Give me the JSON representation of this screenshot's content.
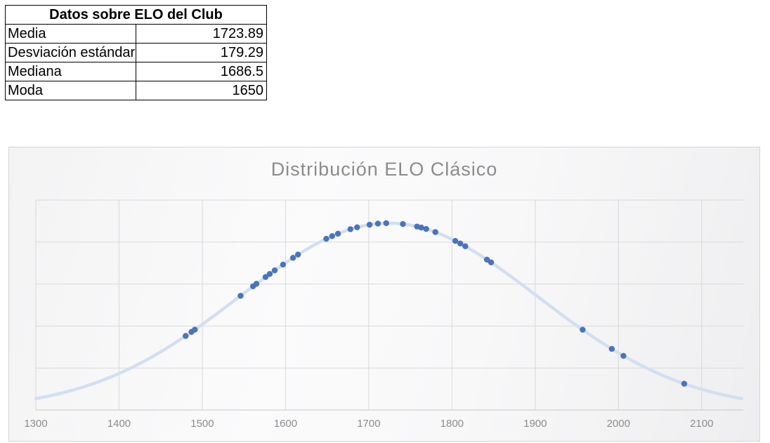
{
  "stats_table": {
    "title": "Datos sobre ELO del Club",
    "rows": [
      {
        "label": "Media",
        "value": "1723.89"
      },
      {
        "label": "Desviación estándar",
        "value": "179.29"
      },
      {
        "label": "Mediana",
        "value": "1686.5"
      },
      {
        "label": "Moda",
        "value": "1650"
      }
    ]
  },
  "chart": {
    "title": "Distribución ELO Clásico"
  },
  "chart_data": {
    "type": "scatter",
    "title": "Distribución ELO Clásico",
    "xlabel": "",
    "ylabel": "",
    "xlim": [
      1300,
      2150
    ],
    "ylim": [
      0,
      0.0025
    ],
    "x_ticks": [
      1300,
      1400,
      1500,
      1600,
      1700,
      1800,
      1900,
      2000,
      2100
    ],
    "y_gridline_intervals": 5,
    "grid": true,
    "legend": false,
    "curve": {
      "type": "normal_pdf",
      "mean": 1723.89,
      "sd": 179.29,
      "x_range": [
        1300,
        2150
      ]
    },
    "points": {
      "x": [
        1480,
        1487,
        1491,
        1546,
        1561,
        1565,
        1576,
        1581,
        1587,
        1597,
        1609,
        1615,
        1649,
        1656,
        1663,
        1678,
        1686,
        1701,
        1711,
        1721,
        1741,
        1758,
        1763,
        1769,
        1780,
        1804,
        1810,
        1816,
        1842,
        1847,
        1957,
        1992,
        2006,
        2079
      ],
      "y": [
        0.000882,
        0.00093,
        0.000957,
        0.00136,
        0.001473,
        0.001503,
        0.001584,
        0.00162,
        0.001663,
        0.001732,
        0.001812,
        0.001851,
        0.002039,
        0.002071,
        0.0021,
        0.002153,
        0.002176,
        0.002207,
        0.00222,
        0.002225,
        0.002215,
        0.002185,
        0.002173,
        0.002156,
        0.002119,
        0.002014,
        0.001983,
        0.00195,
        0.001791,
        0.001758,
        0.000956,
        0.000728,
        0.000645,
        0.000313
      ]
    },
    "colors": {
      "marker": "#4a74bc",
      "marker_edge": "#3e68a8",
      "curve": "#d3dff0",
      "gridline": "#d9d9d9",
      "axis_line": "#c6c6c6",
      "tick_text": "#8c8c8c",
      "title_text": "#8c8c8c"
    }
  }
}
